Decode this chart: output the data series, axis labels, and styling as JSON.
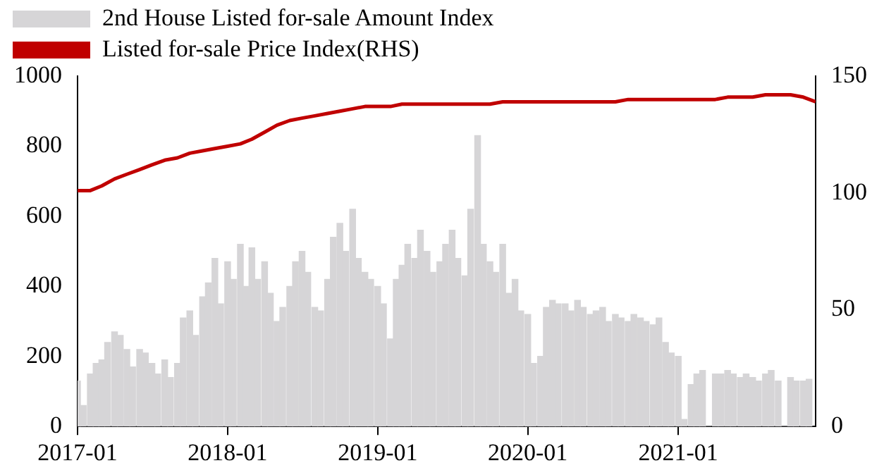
{
  "chart_data": {
    "type": "bar",
    "legend": "top left",
    "grid": false,
    "xlim": [
      "2017-01",
      "2021-12"
    ],
    "xticks": [
      "2017-01",
      "2018-01",
      "2019-01",
      "2020-01",
      "2021-01"
    ],
    "ylim": [
      0,
      1000
    ],
    "yticks": [
      0,
      200,
      400,
      600,
      800,
      1000
    ],
    "y2lim": [
      0,
      150
    ],
    "y2ticks": [
      0,
      50,
      100,
      150
    ],
    "series": [
      {
        "name": "2nd House Listed for-sale Amount Index",
        "color": "#d6d5d7",
        "x": [
          "2017-01-01",
          "2017-01-15",
          "2017-02-01",
          "2017-02-15",
          "2017-03-01",
          "2017-03-15",
          "2017-04-01",
          "2017-04-15",
          "2017-05-01",
          "2017-05-15",
          "2017-06-01",
          "2017-06-15",
          "2017-07-01",
          "2017-07-15",
          "2017-08-01",
          "2017-08-15",
          "2017-09-01",
          "2017-09-15",
          "2017-10-01",
          "2017-10-15",
          "2017-11-01",
          "2017-11-15",
          "2017-12-01",
          "2017-12-15",
          "2018-01-01",
          "2018-01-15",
          "2018-02-01",
          "2018-02-15",
          "2018-03-01",
          "2018-03-15",
          "2018-04-01",
          "2018-04-15",
          "2018-05-01",
          "2018-05-15",
          "2018-06-01",
          "2018-06-15",
          "2018-07-01",
          "2018-07-15",
          "2018-08-01",
          "2018-08-15",
          "2018-09-01",
          "2018-09-15",
          "2018-10-01",
          "2018-10-15",
          "2018-11-01",
          "2018-11-15",
          "2018-12-01",
          "2018-12-15",
          "2019-01-01",
          "2019-01-15",
          "2019-02-01",
          "2019-02-15",
          "2019-03-01",
          "2019-03-15",
          "2019-04-01",
          "2019-04-15",
          "2019-05-01",
          "2019-05-15",
          "2019-06-01",
          "2019-06-15",
          "2019-07-01",
          "2019-07-15",
          "2019-08-01",
          "2019-08-15",
          "2019-09-01",
          "2019-09-15",
          "2019-10-01",
          "2019-10-15",
          "2019-11-01",
          "2019-11-15",
          "2019-12-01",
          "2019-12-15",
          "2020-01-01",
          "2020-01-15",
          "2020-02-01",
          "2020-02-15",
          "2020-03-01",
          "2020-03-15",
          "2020-04-01",
          "2020-04-15",
          "2020-05-01",
          "2020-05-15",
          "2020-06-01",
          "2020-06-15",
          "2020-07-01",
          "2020-07-15",
          "2020-08-01",
          "2020-08-15",
          "2020-09-01",
          "2020-09-15",
          "2020-10-01",
          "2020-10-15",
          "2020-11-01",
          "2020-11-15",
          "2020-12-01",
          "2020-12-15",
          "2021-01-01",
          "2021-01-15",
          "2021-02-01",
          "2021-02-15",
          "2021-03-01",
          "2021-03-15",
          "2021-04-01",
          "2021-04-15",
          "2021-05-01",
          "2021-05-15",
          "2021-06-01",
          "2021-06-15",
          "2021-07-01",
          "2021-07-15",
          "2021-08-01",
          "2021-08-15",
          "2021-09-01",
          "2021-09-15",
          "2021-10-01",
          "2021-10-15",
          "2021-11-01",
          "2021-11-15"
        ],
        "values": [
          130,
          60,
          150,
          180,
          190,
          240,
          270,
          260,
          220,
          170,
          220,
          210,
          180,
          150,
          190,
          140,
          180,
          310,
          330,
          260,
          370,
          410,
          480,
          350,
          470,
          420,
          520,
          400,
          510,
          420,
          470,
          380,
          300,
          340,
          400,
          470,
          500,
          440,
          340,
          330,
          420,
          540,
          580,
          500,
          620,
          480,
          440,
          420,
          400,
          350,
          250,
          420,
          460,
          520,
          480,
          560,
          500,
          440,
          470,
          520,
          560,
          480,
          430,
          620,
          830,
          520,
          470,
          440,
          520,
          380,
          420,
          330,
          320,
          180,
          200,
          340,
          360,
          350,
          350,
          330,
          360,
          340,
          320,
          330,
          340,
          300,
          320,
          310,
          300,
          320,
          310,
          300,
          290,
          310,
          240,
          210,
          200,
          20,
          120,
          150,
          160,
          0,
          150,
          150,
          160,
          150,
          140,
          150,
          140,
          130,
          150,
          160,
          130,
          0,
          140,
          130,
          130,
          135
        ]
      },
      {
        "name": "Listed for-sale Price Index(RHS)",
        "type": "line",
        "axis": "y2",
        "color": "#c00000",
        "marker": "none",
        "x": [
          "2017-01",
          "2017-02",
          "2017-03",
          "2017-04",
          "2017-05",
          "2017-06",
          "2017-07",
          "2017-08",
          "2017-09",
          "2017-10",
          "2017-11",
          "2017-12",
          "2018-01",
          "2018-02",
          "2018-03",
          "2018-04",
          "2018-05",
          "2018-06",
          "2018-07",
          "2018-08",
          "2018-09",
          "2018-10",
          "2018-11",
          "2018-12",
          "2019-01",
          "2019-02",
          "2019-03",
          "2019-04",
          "2019-05",
          "2019-06",
          "2019-07",
          "2019-08",
          "2019-09",
          "2019-10",
          "2019-11",
          "2019-12",
          "2020-01",
          "2020-02",
          "2020-03",
          "2020-04",
          "2020-05",
          "2020-06",
          "2020-07",
          "2020-08",
          "2020-09",
          "2020-10",
          "2020-11",
          "2020-12",
          "2021-01",
          "2021-02",
          "2021-03",
          "2021-04",
          "2021-05",
          "2021-06",
          "2021-07",
          "2021-08",
          "2021-09",
          "2021-10",
          "2021-11",
          "2021-12"
        ],
        "values": [
          101,
          101,
          103,
          106,
          108,
          110,
          112,
          114,
          115,
          117,
          118,
          119,
          120,
          121,
          123,
          126,
          129,
          131,
          132,
          133,
          134,
          135,
          136,
          137,
          137,
          137,
          138,
          138,
          138,
          138,
          138,
          138,
          138,
          138,
          139,
          139,
          139,
          139,
          139,
          139,
          139,
          139,
          139,
          139,
          140,
          140,
          140,
          140,
          140,
          140,
          140,
          140,
          141,
          141,
          141,
          142,
          142,
          142,
          141,
          139
        ]
      }
    ]
  }
}
